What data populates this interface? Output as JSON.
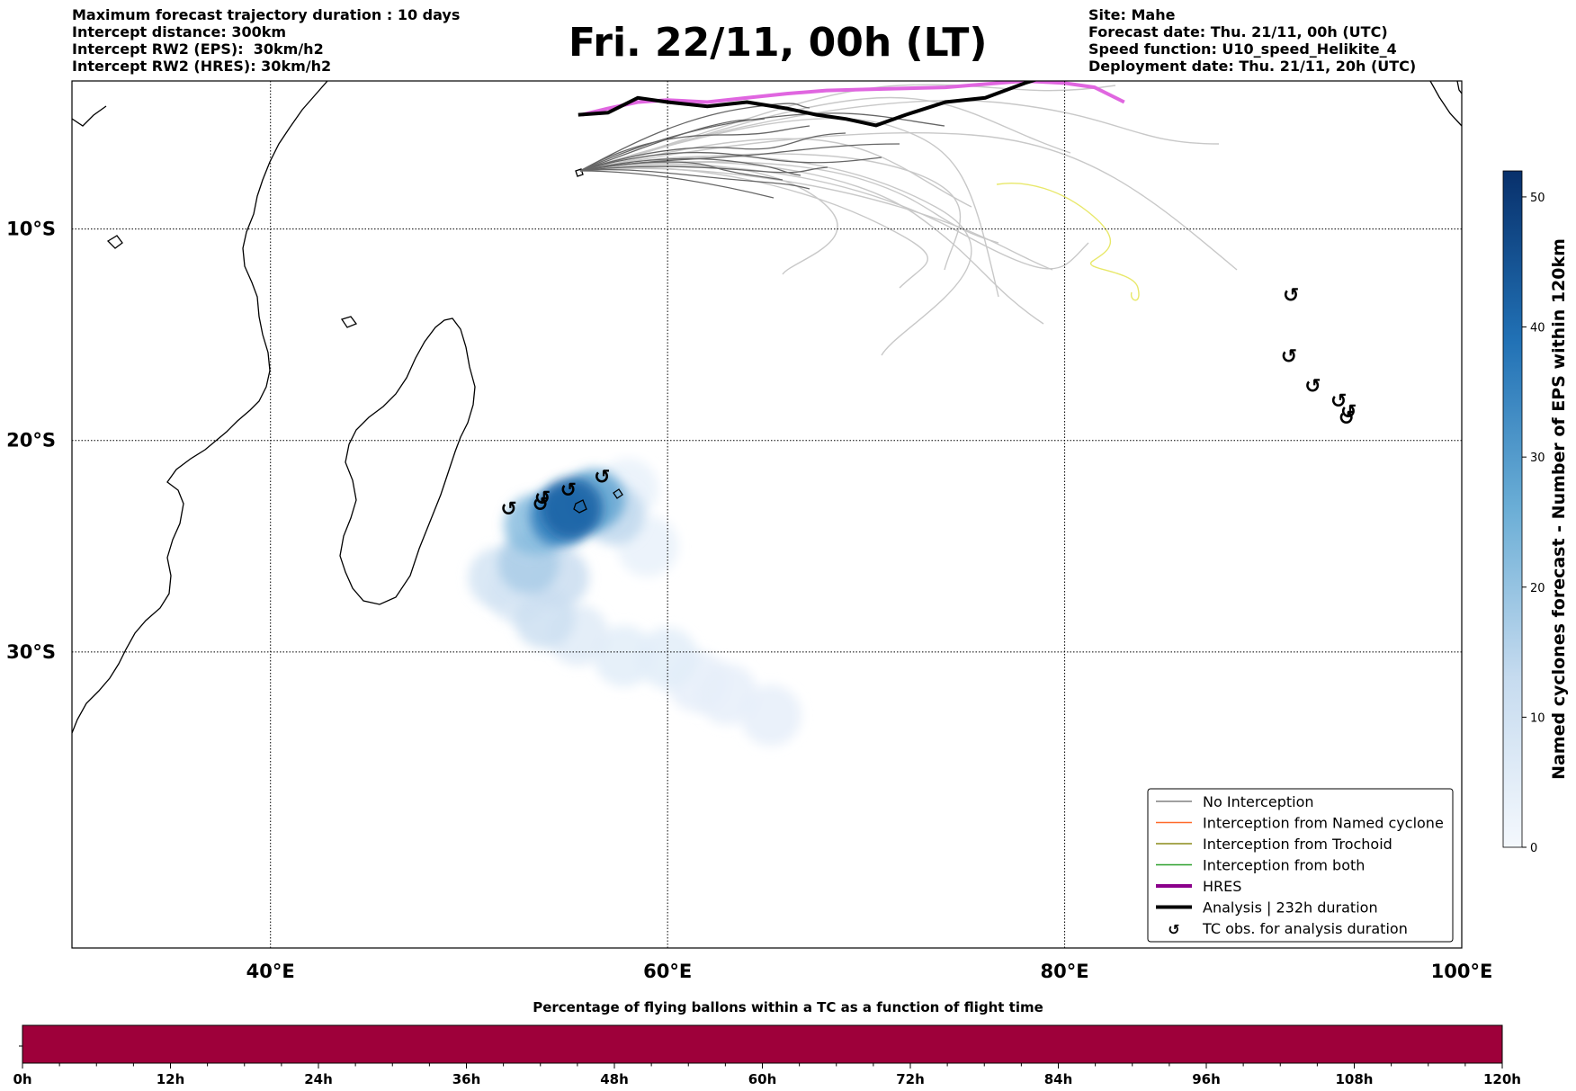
{
  "header_left": [
    "Maximum forecast trajectory duration : 10 days",
    "Intercept distance: 300km",
    "Intercept RW2 (EPS):  30km/h2",
    "Intercept RW2 (HRES): 30km/h2"
  ],
  "title": "Fri. 22/11, 00h (LT)",
  "header_right": [
    "Site: Mahe",
    "Forecast date: Thu. 21/11, 00h (UTC)",
    "Speed function: U10_speed_Helikite_4",
    "Deployment date: Thu. 21/11, 20h (UTC)"
  ],
  "map": {
    "lon_range": [
      30,
      100
    ],
    "lat_range": [
      -3,
      -44
    ],
    "lon_ticks": [
      {
        "value": 40,
        "label": "40°E"
      },
      {
        "value": 60,
        "label": "60°E"
      },
      {
        "value": 80,
        "label": "80°E"
      },
      {
        "value": 100,
        "label": "100°E"
      }
    ],
    "lat_ticks": [
      {
        "value": -10,
        "label": "10°S"
      },
      {
        "value": -20,
        "label": "20°S"
      },
      {
        "value": -30,
        "label": "30°S"
      }
    ],
    "grid": "dotted"
  },
  "legend": {
    "placement": "bottom-right",
    "items": [
      {
        "label": "No Interception",
        "color": "#808080",
        "style": "thin"
      },
      {
        "label": "Interception from Named cyclone",
        "color": "#ff6a2a",
        "style": "thin"
      },
      {
        "label": "Interception from Trochoid",
        "color": "#8b8b1a",
        "style": "thin"
      },
      {
        "label": "Interception from both",
        "color": "#2ca02c",
        "style": "thin"
      },
      {
        "label": "HRES",
        "color": "#8b008b",
        "style": "thick"
      },
      {
        "label": "Analysis | 232h duration",
        "color": "#000000",
        "style": "thick"
      },
      {
        "label": "TC obs. for analysis duration",
        "color": "#000000",
        "style": "marker"
      }
    ]
  },
  "colorbar": {
    "label": "Named cyclones forecast - Number of EPS within 120km",
    "range": [
      0,
      52
    ],
    "ticks": [
      "0",
      "10",
      "20",
      "30",
      "40",
      "50"
    ],
    "color_low": "#f0f5fb",
    "color_high": "#08306b"
  },
  "tc_marker_symbol": "↺",
  "tc_observations": [
    {
      "lon": 52.0,
      "lat": -23.2
    },
    {
      "lon": 53.6,
      "lat": -23.0
    },
    {
      "lon": 53.7,
      "lat": -22.7
    },
    {
      "lon": 55.0,
      "lat": -22.3
    },
    {
      "lon": 56.7,
      "lat": -21.7
    },
    {
      "lon": 91.4,
      "lat": -13.1
    },
    {
      "lon": 91.3,
      "lat": -16.0
    },
    {
      "lon": 92.5,
      "lat": -17.4
    },
    {
      "lon": 93.8,
      "lat": -18.1
    },
    {
      "lon": 94.3,
      "lat": -18.6
    },
    {
      "lon": 94.2,
      "lat": -18.9
    }
  ],
  "named_cyclone_density": [
    {
      "lon": 55.2,
      "lat": -23.2,
      "value": 42
    },
    {
      "lon": 54.6,
      "lat": -23.6,
      "value": 36
    },
    {
      "lon": 56.3,
      "lat": -22.8,
      "value": 28
    },
    {
      "lon": 53.3,
      "lat": -24.0,
      "value": 22
    },
    {
      "lon": 57.3,
      "lat": -23.5,
      "value": 14
    },
    {
      "lon": 53.0,
      "lat": -25.8,
      "value": 17
    },
    {
      "lon": 54.5,
      "lat": -26.5,
      "value": 12
    },
    {
      "lon": 51.5,
      "lat": -26.5,
      "value": 9
    },
    {
      "lon": 53.8,
      "lat": -28.4,
      "value": 11
    },
    {
      "lon": 52.5,
      "lat": -27.2,
      "value": 8
    },
    {
      "lon": 55.5,
      "lat": -29.2,
      "value": 6
    },
    {
      "lon": 57.8,
      "lat": -30.2,
      "value": 5
    },
    {
      "lon": 60.0,
      "lat": -30.3,
      "value": 5
    },
    {
      "lon": 61.5,
      "lat": -31.4,
      "value": 4
    },
    {
      "lon": 63.0,
      "lat": -32.0,
      "value": 4
    },
    {
      "lon": 65.2,
      "lat": -33.0,
      "value": 4
    },
    {
      "lon": 59.0,
      "lat": -25.0,
      "value": 3
    },
    {
      "lon": 58.0,
      "lat": -22.3,
      "value": 3
    }
  ],
  "hres_track": [
    [
      55.7,
      -4.6
    ],
    [
      57.0,
      -4.3
    ],
    [
      58.5,
      -4.0
    ],
    [
      60.0,
      -3.9
    ],
    [
      62.0,
      -4.0
    ],
    [
      64.0,
      -3.8
    ],
    [
      66.0,
      -3.6
    ],
    [
      68.0,
      -3.45
    ],
    [
      70.0,
      -3.4
    ],
    [
      72.0,
      -3.35
    ],
    [
      74.0,
      -3.3
    ],
    [
      76.0,
      -3.15
    ],
    [
      78.0,
      -3.0
    ],
    [
      80.0,
      -3.1
    ],
    [
      81.5,
      -3.3
    ],
    [
      83.0,
      -4.0
    ]
  ],
  "analysis_track": [
    [
      55.5,
      -4.6
    ],
    [
      57.0,
      -4.5
    ],
    [
      58.5,
      -3.8
    ],
    [
      60.0,
      -4.0
    ],
    [
      62.0,
      -4.2
    ],
    [
      64.0,
      -4.0
    ],
    [
      66.0,
      -4.3
    ],
    [
      67.5,
      -4.6
    ],
    [
      69.0,
      -4.8
    ],
    [
      70.5,
      -5.1
    ],
    [
      72.0,
      -4.6
    ],
    [
      74.0,
      -4.0
    ],
    [
      76.0,
      -3.8
    ],
    [
      78.0,
      -3.1
    ],
    [
      80.0,
      -2.5
    ],
    [
      80.5,
      -2.3
    ]
  ],
  "bottom_bar": {
    "title": "Percentage of flying ballons within a TC as a function of flight time",
    "fill_color": "#9e003a",
    "ticks": [
      "0h",
      "12h",
      "24h",
      "36h",
      "48h",
      "60h",
      "72h",
      "84h",
      "96h",
      "108h",
      "120h"
    ],
    "range_hours": [
      0,
      120
    ]
  }
}
